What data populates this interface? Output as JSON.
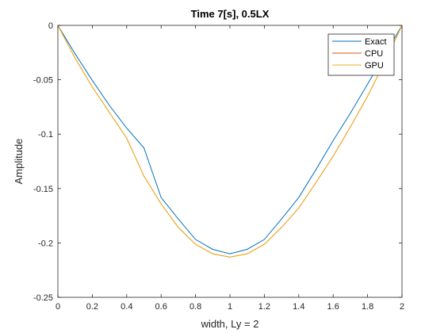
{
  "chart_data": {
    "type": "line",
    "title": "Time 7[s], 0.5LX",
    "xlabel": "width, Ly = 2",
    "ylabel": "Amplitude",
    "xlim": [
      0,
      2
    ],
    "ylim": [
      -0.25,
      0
    ],
    "xticks": [
      0,
      0.2,
      0.4,
      0.6,
      0.8,
      1,
      1.2,
      1.4,
      1.6,
      1.8,
      2
    ],
    "xtick_labels": [
      "0",
      "0.2",
      "0.4",
      "0.6",
      "0.8",
      "1",
      "1.2",
      "1.4",
      "1.6",
      "1.8",
      "2"
    ],
    "yticks": [
      0,
      -0.05,
      -0.1,
      -0.15,
      -0.2,
      -0.25
    ],
    "ytick_labels": [
      "0",
      "-0.05",
      "-0.1",
      "-0.15",
      "-0.2",
      "-0.25"
    ],
    "grid": false,
    "legend_position": "top-right",
    "x": [
      0,
      0.1,
      0.2,
      0.3,
      0.4,
      0.5,
      0.6,
      0.7,
      0.8,
      0.9,
      1.0,
      1.1,
      1.2,
      1.3,
      1.4,
      1.5,
      1.6,
      1.7,
      1.8,
      1.9,
      2.0
    ],
    "series": [
      {
        "name": "Exact",
        "color": "#0072BD",
        "values": [
          0,
          -0.0261,
          -0.0506,
          -0.0737,
          -0.0944,
          -0.1126,
          -0.1582,
          -0.178,
          -0.1968,
          -0.2059,
          -0.21,
          -0.2059,
          -0.1968,
          -0.178,
          -0.1582,
          -0.1326,
          -0.1059,
          -0.0807,
          -0.054,
          -0.027,
          0.0
        ]
      },
      {
        "name": "CPU",
        "color": "#D95319",
        "values": [
          0,
          -0.0301,
          -0.0566,
          -0.0802,
          -0.1037,
          -0.1385,
          -0.164,
          -0.1857,
          -0.2012,
          -0.21,
          -0.213,
          -0.21,
          -0.2012,
          -0.1857,
          -0.168,
          -0.1445,
          -0.1202,
          -0.0934,
          -0.0652,
          -0.0335,
          0.0
        ]
      },
      {
        "name": "GPU",
        "color": "#EDB120",
        "values": [
          0,
          -0.0301,
          -0.0566,
          -0.0802,
          -0.1037,
          -0.1385,
          -0.164,
          -0.1857,
          -0.2012,
          -0.21,
          -0.213,
          -0.21,
          -0.2012,
          -0.1857,
          -0.168,
          -0.1445,
          -0.1202,
          -0.0934,
          -0.0652,
          -0.0335,
          0.0
        ]
      }
    ]
  }
}
